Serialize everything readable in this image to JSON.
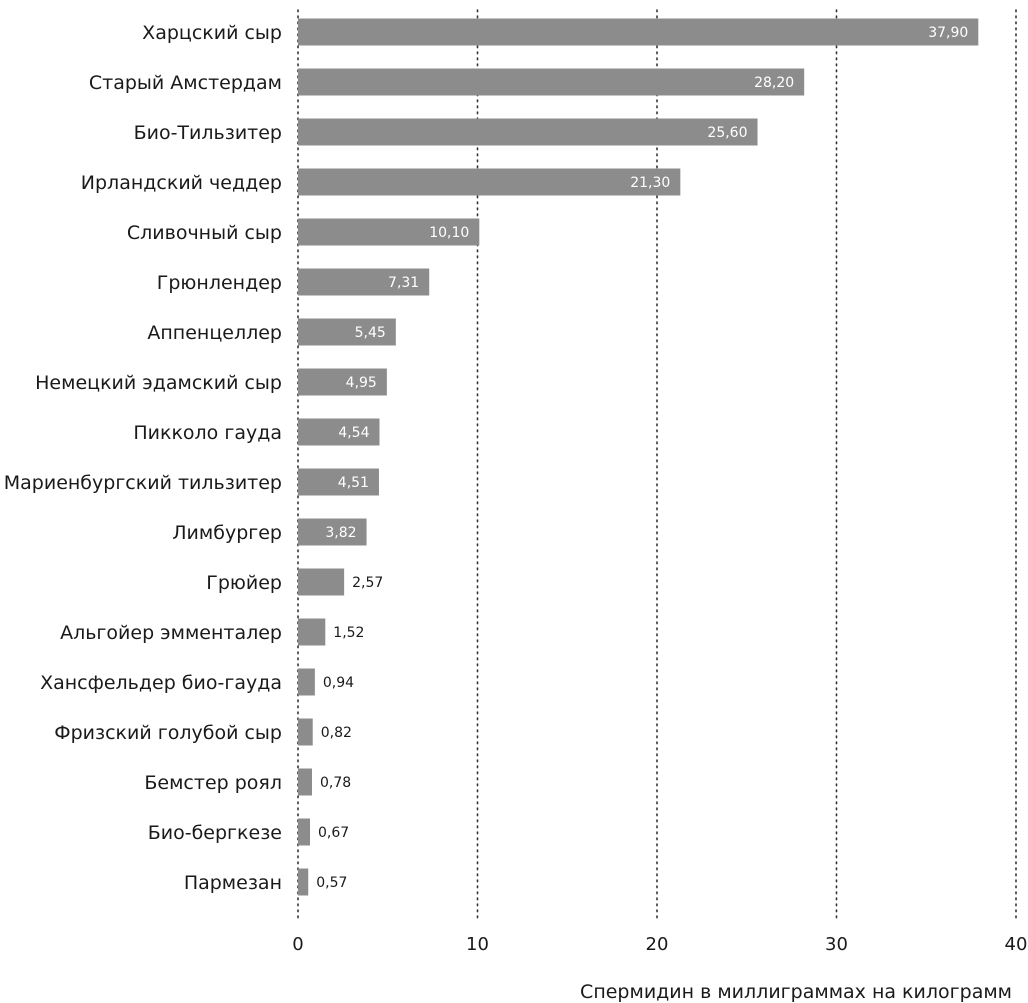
{
  "chart_data": {
    "type": "bar",
    "orientation": "horizontal",
    "categories": [
      "Харцский сыр",
      "Старый Амстердам",
      "Био-Тильзитер",
      "Ирландский чеддер",
      "Сливочный сыр",
      "Грюнлендер",
      "Аппенцеллер",
      "Немецкий эдамский сыр",
      "Пикколо гауда",
      "Мариенбургский тильзитер",
      "Лимбургер",
      "Грюйер",
      "Альгойер эмменталер",
      "Хансфельдер био-гауда",
      "Фризский голубой сыр",
      "Бемстер роял",
      "Био-бергкезе",
      "Пармезан"
    ],
    "values": [
      37.9,
      28.2,
      25.6,
      21.3,
      10.1,
      7.31,
      5.45,
      4.95,
      4.54,
      4.51,
      3.82,
      2.57,
      1.52,
      0.94,
      0.82,
      0.78,
      0.67,
      0.57
    ],
    "value_labels": [
      "37,90",
      "28,20",
      "25,60",
      "21,30",
      "10,10",
      "7,31",
      "5,45",
      "4,95",
      "4,54",
      "4,51",
      "3,82",
      "2,57",
      "1,52",
      "0,94",
      "0,82",
      "0,78",
      "0,67",
      "0,57"
    ],
    "xlabel": "Спермидин в миллиграммах на килограмм",
    "ylabel": "",
    "title": "",
    "xlim": [
      0,
      40
    ],
    "xticks": [
      0,
      10,
      20,
      30,
      40
    ],
    "xtick_labels": [
      "0",
      "10",
      "20",
      "30",
      "40"
    ],
    "grid": "vertical-dotted",
    "colors": {
      "bar": "#8c8c8c",
      "label_inside": "#ffffff",
      "label_outside": "#1a1a1a",
      "grid": "#333333"
    }
  }
}
